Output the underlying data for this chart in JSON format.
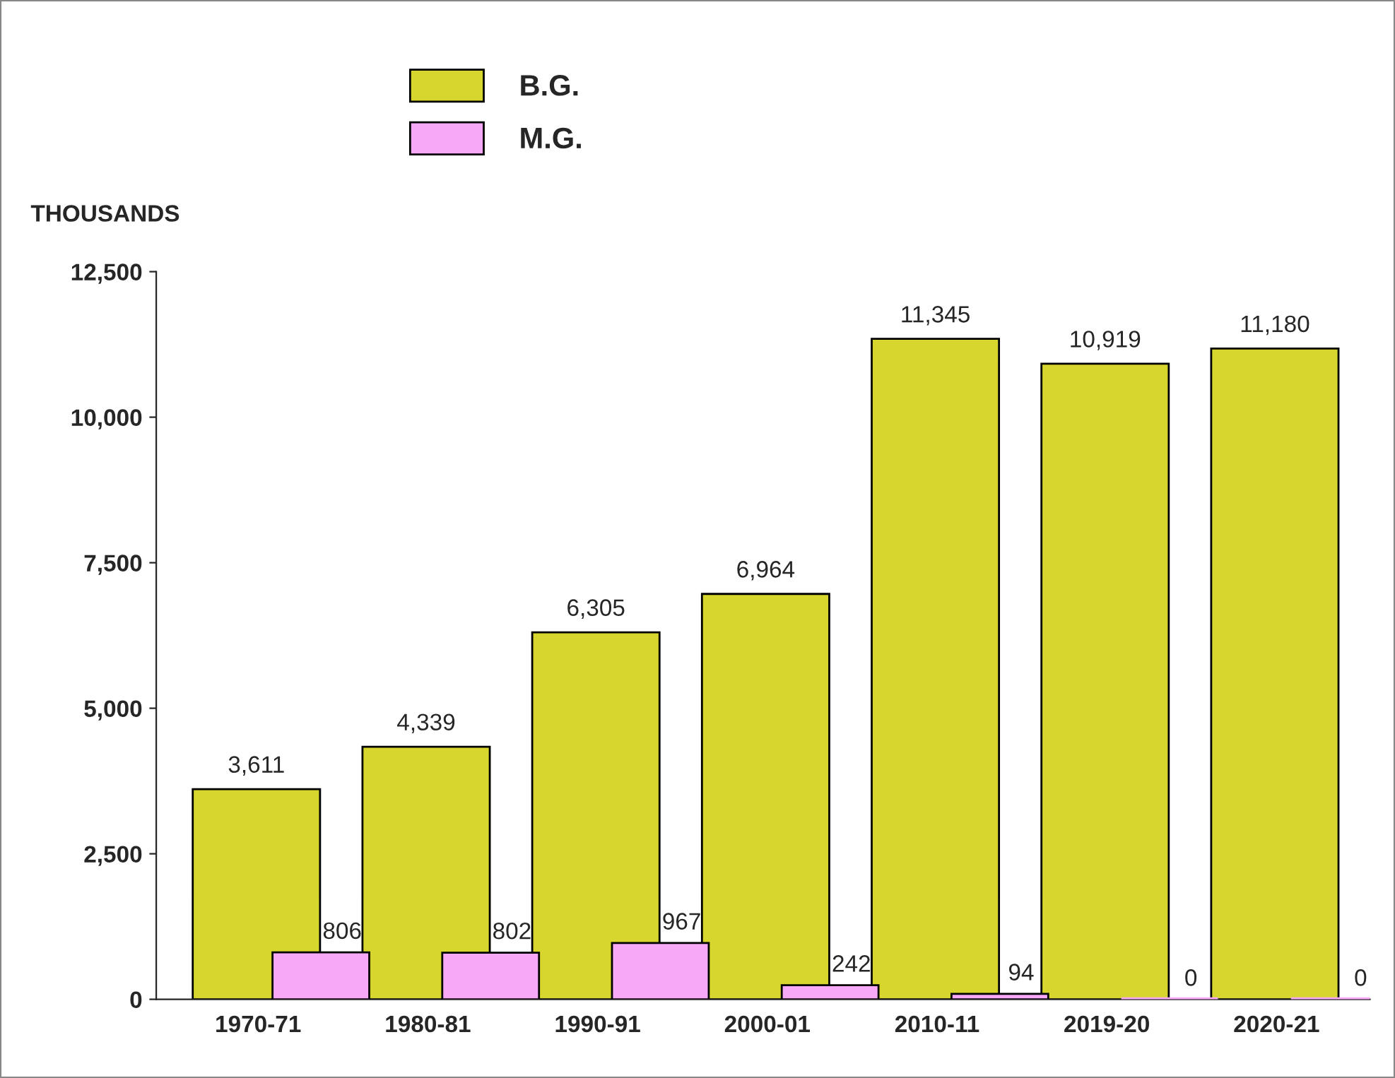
{
  "chart_data": {
    "type": "bar",
    "ylabel": "THOUSANDS",
    "categories": [
      "1970-71",
      "1980-81",
      "1990-91",
      "2000-01",
      "2010-11",
      "2019-20",
      "2020-21"
    ],
    "series": [
      {
        "name": "B.G.",
        "color": "#d6d62e",
        "values": [
          3611,
          4339,
          6305,
          6964,
          11345,
          10919,
          11180
        ],
        "value_labels": [
          "3,611",
          "4,339",
          "6,305",
          "6,964",
          "11,345",
          "10,919",
          "11,180"
        ]
      },
      {
        "name": "M.G.",
        "color": "#f7a8f7",
        "values": [
          806,
          802,
          967,
          242,
          94,
          0,
          0
        ],
        "value_labels": [
          "806",
          "802",
          "967",
          "242",
          "94",
          "0",
          "0"
        ]
      }
    ],
    "ylim": [
      0,
      12500
    ],
    "yticks": [
      0,
      {
        "value": 2500,
        "label": "2,500"
      },
      {
        "value": 5000,
        "label": "5,000"
      },
      {
        "value": 7500,
        "label": "7,500"
      },
      {
        "value": 10000,
        "label": "10,000"
      },
      {
        "value": 12500,
        "label": "12,500"
      }
    ],
    "grid": false,
    "legend": "top"
  }
}
